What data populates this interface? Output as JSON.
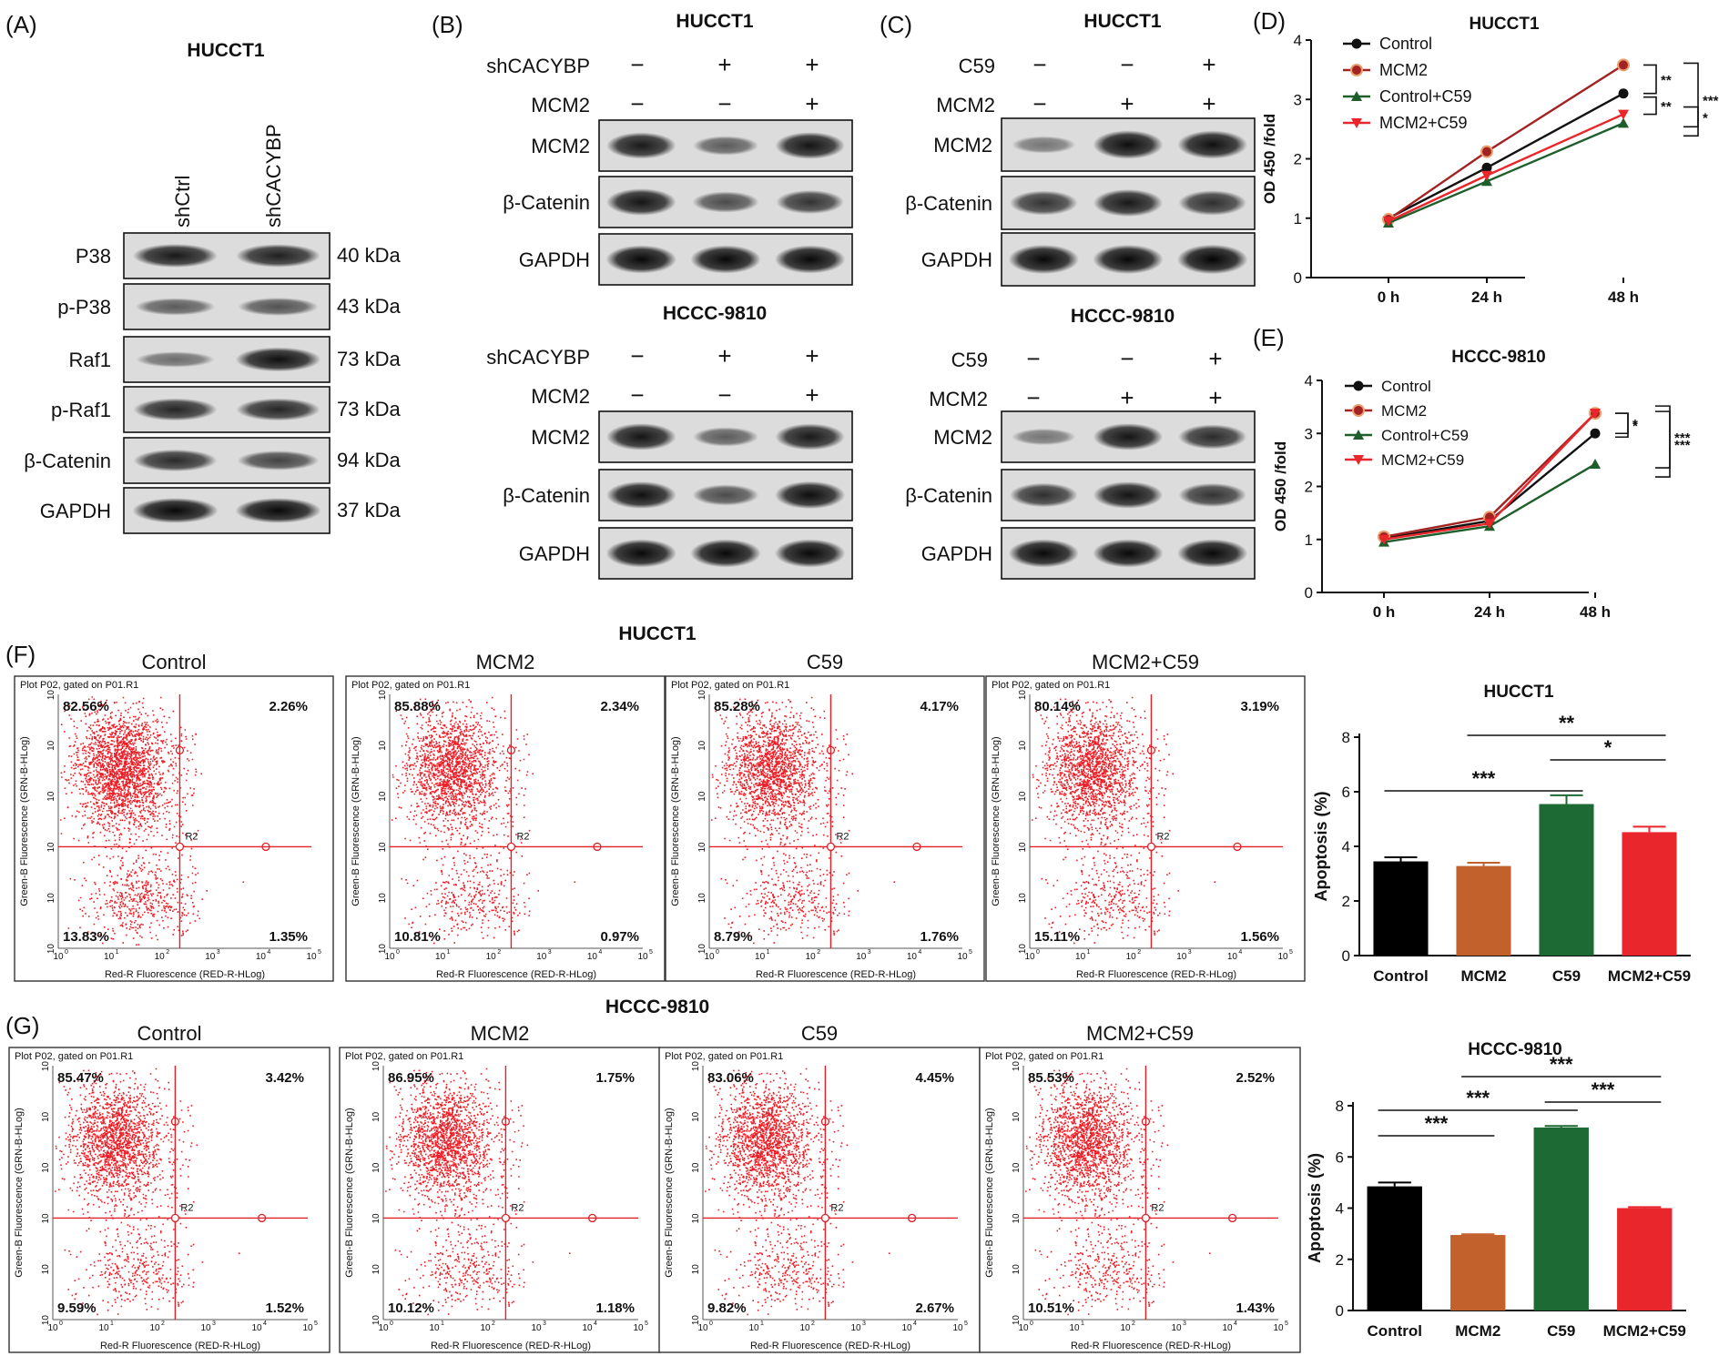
{
  "panels": {
    "A": {
      "letter": "(A)",
      "title": "HUCCT1",
      "lanes": [
        "shCtrl",
        "shCACYBP"
      ],
      "rows": [
        {
          "label": "P38",
          "kda": "40 kDa",
          "i": [
            0.85,
            0.82
          ]
        },
        {
          "label": "p-P38",
          "kda": "43 kDa",
          "i": [
            0.45,
            0.5
          ]
        },
        {
          "label": "Raf1",
          "kda": "73 kDa",
          "i": [
            0.35,
            0.9
          ]
        },
        {
          "label": "p-Raf1",
          "kda": "73 kDa",
          "i": [
            0.78,
            0.78
          ]
        },
        {
          "label": "β-Catenin",
          "kda": "94 kDa",
          "i": [
            0.75,
            0.6
          ]
        },
        {
          "label": "GAPDH",
          "kda": "37 kDa",
          "i": [
            0.95,
            0.95
          ]
        }
      ]
    },
    "B": {
      "letter": "(B)",
      "blocks": [
        {
          "title": "HUCCT1",
          "treatments": [
            {
              "name": "shCACYBP",
              "signs": [
                "−",
                "+",
                "+"
              ]
            },
            {
              "name": "MCM2",
              "signs": [
                "−",
                "−",
                "+"
              ]
            }
          ],
          "rows": [
            {
              "label": "MCM2",
              "i": [
                0.85,
                0.45,
                0.88
              ]
            },
            {
              "label": "β-Catenin",
              "i": [
                0.88,
                0.55,
                0.7
              ]
            },
            {
              "label": "GAPDH",
              "i": [
                0.95,
                0.95,
                0.95
              ]
            }
          ]
        },
        {
          "title": "HCCC-9810",
          "treatments": [
            {
              "name": "shCACYBP",
              "signs": [
                "−",
                "+",
                "+"
              ]
            },
            {
              "name": "MCM2",
              "signs": [
                "−",
                "−",
                "+"
              ]
            }
          ],
          "rows": [
            {
              "label": "MCM2",
              "i": [
                0.88,
                0.45,
                0.85
              ]
            },
            {
              "label": "β-Catenin",
              "i": [
                0.9,
                0.55,
                0.92
              ]
            },
            {
              "label": "GAPDH",
              "i": [
                0.95,
                0.95,
                0.95
              ]
            }
          ]
        }
      ]
    },
    "C": {
      "letter": "(C)",
      "blocks": [
        {
          "title": "HUCCT1",
          "treatments": [
            {
              "name": "C59",
              "signs": [
                "−",
                "−",
                "+"
              ]
            },
            {
              "name": "MCM2",
              "signs": [
                "−",
                "+",
                "+"
              ]
            }
          ],
          "rows": [
            {
              "label": "MCM2",
              "i": [
                0.3,
                0.92,
                0.9
              ]
            },
            {
              "label": "β-Catenin",
              "i": [
                0.7,
                0.85,
                0.72
              ]
            },
            {
              "label": "GAPDH",
              "i": [
                0.95,
                0.95,
                0.97
              ]
            }
          ]
        },
        {
          "title": "HCCC-9810",
          "treatments": [
            {
              "name": "C59",
              "signs": [
                "−",
                "−",
                "+"
              ]
            },
            {
              "name": "MCM2",
              "signs": [
                "−",
                "+",
                "+"
              ]
            }
          ],
          "rows": [
            {
              "label": "MCM2",
              "i": [
                0.3,
                0.88,
                0.75
              ]
            },
            {
              "label": "β-Catenin",
              "i": [
                0.72,
                0.88,
                0.7
              ]
            },
            {
              "label": "GAPDH",
              "i": [
                0.95,
                0.95,
                0.95
              ]
            }
          ]
        }
      ]
    },
    "F": {
      "letter": "(F)",
      "title": "HUCCT1"
    },
    "G": {
      "letter": "(G)",
      "title": "HCCC-9810"
    }
  },
  "flow": {
    "plot_header": "Plot P02, gated on P01.R1",
    "xaxis": "Red-R Fluorescence (RED-R-HLog)",
    "yaxis": "Green-B Fluorescence (GRN-B-HLog)",
    "gate": "R2",
    "ticks": [
      "10",
      "10",
      "10",
      "10",
      "10",
      "10"
    ],
    "exps": [
      "0",
      "1",
      "2",
      "3",
      "4",
      "5"
    ],
    "F": [
      {
        "title": "Control",
        "q": [
          "82.56%",
          "2.26%",
          "13.83%",
          "1.35%"
        ]
      },
      {
        "title": "MCM2",
        "q": [
          "85.88%",
          "2.34%",
          "10.81%",
          "0.97%"
        ]
      },
      {
        "title": "C59",
        "q": [
          "85.28%",
          "4.17%",
          "8.79%",
          "1.76%"
        ]
      },
      {
        "title": "MCM2+C59",
        "q": [
          "80.14%",
          "3.19%",
          "15.11%",
          "1.56%"
        ]
      }
    ],
    "G": [
      {
        "title": "Control",
        "q": [
          "85.47%",
          "3.42%",
          "9.59%",
          "1.52%"
        ]
      },
      {
        "title": "MCM2",
        "q": [
          "86.95%",
          "1.75%",
          "10.12%",
          "1.18%"
        ]
      },
      {
        "title": "C59",
        "q": [
          "83.06%",
          "4.45%",
          "9.82%",
          "2.67%"
        ]
      },
      {
        "title": "MCM2+C59",
        "q": [
          "85.53%",
          "2.52%",
          "10.51%",
          "1.43%"
        ]
      }
    ]
  },
  "chart_data": [
    {
      "id": "D",
      "letter": "(D)",
      "type": "line",
      "title": "HUCCT1",
      "categories": [
        "0 h",
        "24 h",
        "48 h"
      ],
      "ylabel": "OD 450 /fold",
      "ylim": [
        0,
        4
      ],
      "yticks": [
        0,
        1,
        2,
        3,
        4
      ],
      "series": [
        {
          "name": "Control",
          "color": "#111111",
          "marker": "circle",
          "values": [
            1.0,
            1.85,
            3.1
          ]
        },
        {
          "name": "MCM2",
          "color": "#a32323",
          "marker": "circle-ring",
          "values": [
            0.98,
            2.12,
            3.58
          ]
        },
        {
          "name": "Control+C59",
          "color": "#1d5e2b",
          "marker": "triangle-up",
          "values": [
            0.92,
            1.62,
            2.6
          ]
        },
        {
          "name": "MCM2+C59",
          "color": "#e8262b",
          "marker": "triangle-down",
          "values": [
            0.95,
            1.72,
            2.75
          ]
        }
      ],
      "significance": [
        "**",
        "**",
        "***",
        "*"
      ]
    },
    {
      "id": "E",
      "letter": "(E)",
      "type": "line",
      "title": "HCCC-9810",
      "categories": [
        "0 h",
        "24 h",
        "48 h"
      ],
      "ylabel": "OD 450 /fold",
      "ylim": [
        0,
        4
      ],
      "yticks": [
        0,
        1,
        2,
        3,
        4
      ],
      "series": [
        {
          "name": "Control",
          "color": "#111111",
          "marker": "circle",
          "values": [
            1.02,
            1.35,
            3.0
          ]
        },
        {
          "name": "MCM2",
          "color": "#a32323",
          "marker": "circle-ring",
          "values": [
            1.05,
            1.42,
            3.38
          ]
        },
        {
          "name": "Control+C59",
          "color": "#1d5e2b",
          "marker": "triangle-up",
          "values": [
            0.95,
            1.25,
            2.42
          ]
        },
        {
          "name": "MCM2+C59",
          "color": "#e8262b",
          "marker": "triangle-down",
          "values": [
            1.0,
            1.3,
            3.38
          ]
        }
      ],
      "significance": [
        "*",
        "*",
        "***",
        "***"
      ]
    },
    {
      "id": "F-bar",
      "type": "bar",
      "title": "HUCCT1",
      "categories": [
        "Control",
        "MCM2",
        "C59",
        "MCM2+C59"
      ],
      "values": [
        3.45,
        3.28,
        5.55,
        4.52
      ],
      "errors": [
        0.15,
        0.12,
        0.32,
        0.2
      ],
      "colors": [
        "#000000",
        "#c2612c",
        "#1d6a35",
        "#e8262b"
      ],
      "ylabel": "Apoptosis (%)",
      "ylim": [
        0,
        8
      ],
      "yticks": [
        0,
        2,
        4,
        6,
        8
      ],
      "brackets": [
        {
          "a": 0,
          "b": 2,
          "label": "***"
        },
        {
          "a": 1,
          "b": 3,
          "label": "**"
        },
        {
          "a": 2,
          "b": 3,
          "label": "*"
        }
      ]
    },
    {
      "id": "G-bar",
      "type": "bar",
      "title": "HCCC-9810",
      "categories": [
        "Control",
        "MCM2",
        "C59",
        "MCM2+C59"
      ],
      "values": [
        4.85,
        2.95,
        7.15,
        4.0
      ],
      "errors": [
        0.15,
        0.03,
        0.06,
        0.04
      ],
      "colors": [
        "#000000",
        "#c2612c",
        "#1d6a35",
        "#e8262b"
      ],
      "ylabel": "Apoptosis (%)",
      "ylim": [
        0,
        8
      ],
      "yticks": [
        0,
        2,
        4,
        6,
        8
      ],
      "brackets": [
        {
          "a": 0,
          "b": 1,
          "label": "***"
        },
        {
          "a": 0,
          "b": 2,
          "label": "***"
        },
        {
          "a": 2,
          "b": 3,
          "label": "***"
        },
        {
          "a": 1,
          "b": 3,
          "label": "***"
        }
      ]
    }
  ]
}
